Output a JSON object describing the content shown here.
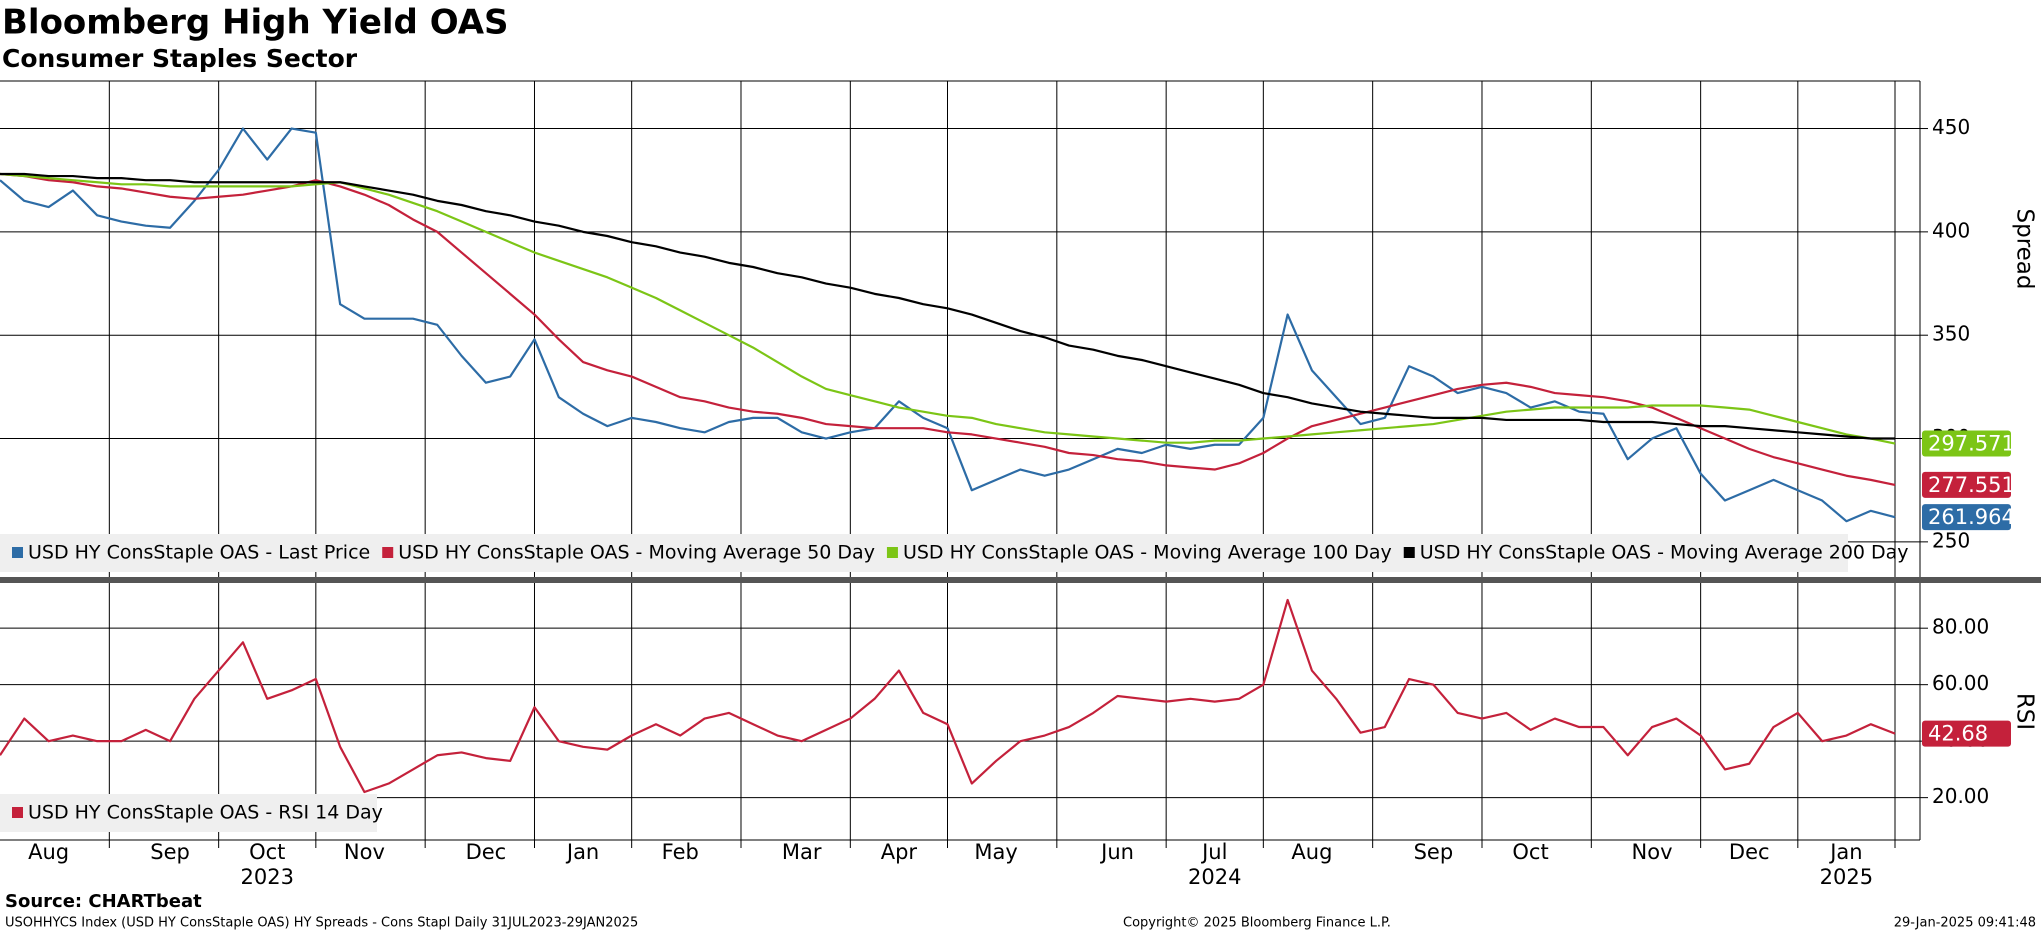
{
  "title": "Bloomberg High Yield OAS",
  "subtitle": "Consumer Staples Sector",
  "x_axis": {
    "categories": [
      null,
      null,
      "Aug",
      null,
      null,
      null,
      null,
      "Sep",
      null,
      null,
      null,
      "Oct",
      null,
      null,
      null,
      "Nov",
      null,
      null,
      null,
      null,
      "Dec",
      null,
      null,
      null,
      "Jan",
      null,
      null,
      null,
      "Feb",
      null,
      null,
      null,
      null,
      "Mar",
      null,
      null,
      null,
      "Apr",
      null,
      null,
      null,
      "May",
      null,
      null,
      null,
      null,
      "Jun",
      null,
      null,
      null,
      "Jul",
      null,
      null,
      null,
      "Aug",
      null,
      null,
      null,
      null,
      "Sep",
      null,
      null,
      null,
      "Oct",
      null,
      null,
      null,
      null,
      "Nov",
      null,
      null,
      null,
      "Dec",
      null,
      null,
      null,
      "Jan",
      null,
      null
    ],
    "years": [
      null,
      null,
      null,
      null,
      null,
      null,
      null,
      null,
      null,
      null,
      null,
      "2023",
      null,
      null,
      null,
      null,
      null,
      null,
      null,
      null,
      null,
      null,
      null,
      null,
      null,
      null,
      null,
      null,
      null,
      null,
      null,
      null,
      null,
      null,
      null,
      null,
      null,
      null,
      null,
      null,
      null,
      null,
      null,
      null,
      null,
      null,
      null,
      null,
      null,
      null,
      "2024",
      null,
      null,
      null,
      null,
      null,
      null,
      null,
      null,
      null,
      null,
      null,
      null,
      null,
      null,
      null,
      null,
      null,
      null,
      null,
      null,
      null,
      null,
      null,
      null,
      null,
      "2025",
      null,
      null
    ]
  },
  "chart_data": [
    {
      "type": "line",
      "y_label": "Spread",
      "ylim": [
        233,
        473
      ],
      "yticks": [
        250,
        300,
        350,
        400,
        450
      ],
      "grid": true,
      "series": [
        {
          "name": "USD HY ConsStaple OAS - Last Price",
          "color": "#2d6ca6",
          "tagged": true,
          "values": [
            425,
            415,
            412,
            420,
            408,
            405,
            403,
            402,
            415,
            430,
            450,
            435,
            450,
            448,
            365,
            358,
            358,
            358,
            355,
            340,
            327,
            330,
            348,
            320,
            312,
            306,
            310,
            308,
            305,
            303,
            308,
            310,
            310,
            303,
            300,
            303,
            305,
            318,
            310,
            305,
            275,
            280,
            285,
            282,
            285,
            290,
            295,
            293,
            297,
            295,
            297,
            297,
            310,
            360,
            333,
            320,
            307,
            310,
            335,
            330,
            322,
            325,
            322,
            315,
            318,
            313,
            312,
            290,
            300,
            305,
            283,
            270,
            275,
            280,
            275,
            270,
            260,
            265,
            261.964
          ]
        },
        {
          "name": "USD HY ConsStaple OAS - Moving Average 50 Day",
          "color": "#c4213b",
          "tagged": true,
          "values": [
            428,
            427,
            425,
            424,
            422,
            421,
            419,
            417,
            416,
            417,
            418,
            420,
            422,
            425,
            422,
            418,
            413,
            406,
            400,
            390,
            380,
            370,
            360,
            348,
            337,
            333,
            330,
            325,
            320,
            318,
            315,
            313,
            312,
            310,
            307,
            306,
            305,
            305,
            305,
            303,
            302,
            300,
            298,
            296,
            293,
            292,
            290,
            289,
            287,
            286,
            285,
            288,
            293,
            300,
            306,
            309,
            312,
            315,
            318,
            321,
            324,
            326,
            327,
            325,
            322,
            321,
            320,
            318,
            315,
            310,
            305,
            300,
            295,
            291,
            288,
            285,
            282,
            280,
            277.551
          ]
        },
        {
          "name": "USD HY ConsStaple OAS - Moving Average 100 Day",
          "color": "#7cc516",
          "tagged": true,
          "values": [
            428,
            427,
            426,
            425,
            424,
            423,
            423,
            422,
            422,
            422,
            422,
            422,
            422,
            423,
            424,
            421,
            418,
            414,
            410,
            405,
            400,
            395,
            390,
            386,
            382,
            378,
            373,
            368,
            362,
            356,
            350,
            344,
            337,
            330,
            324,
            321,
            318,
            315,
            313,
            311,
            310,
            307,
            305,
            303,
            302,
            301,
            300,
            299,
            298,
            298,
            299,
            299,
            300,
            301,
            302,
            303,
            304,
            305,
            306,
            307,
            309,
            311,
            313,
            314,
            315,
            315,
            315,
            315,
            316,
            316,
            316,
            315,
            314,
            311,
            308,
            305,
            302,
            300,
            297.571
          ]
        },
        {
          "name": "USD HY ConsStaple OAS - Moving Average 200 Day",
          "color": "#000000",
          "tagged": false,
          "values": [
            428,
            428,
            427,
            427,
            426,
            426,
            425,
            425,
            424,
            424,
            424,
            424,
            424,
            424,
            424,
            422,
            420,
            418,
            415,
            413,
            410,
            408,
            405,
            403,
            400,
            398,
            395,
            393,
            390,
            388,
            385,
            383,
            380,
            378,
            375,
            373,
            370,
            368,
            365,
            363,
            360,
            356,
            352,
            349,
            345,
            343,
            340,
            338,
            335,
            332,
            329,
            326,
            322,
            320,
            317,
            315,
            313,
            312,
            311,
            310,
            310,
            310,
            309,
            309,
            309,
            309,
            308,
            308,
            308,
            307,
            306,
            306,
            305,
            304,
            303,
            302,
            301,
            300,
            300
          ]
        }
      ]
    },
    {
      "type": "line",
      "y_label": "RSI",
      "ylim": [
        5,
        96
      ],
      "yticks": [
        {
          "value": 20,
          "label": "20.00"
        },
        {
          "value": 40,
          "label": "40.00"
        },
        {
          "value": 60,
          "label": "60.00"
        },
        {
          "value": 80,
          "label": "80.00"
        }
      ],
      "grid": true,
      "series": [
        {
          "name": "USD HY ConsStaple OAS - RSI 14 Day",
          "color": "#c4213b",
          "tagged": true,
          "values": [
            35,
            48,
            40,
            42,
            40,
            40,
            44,
            40,
            55,
            65,
            75,
            55,
            58,
            62,
            38,
            22,
            25,
            30,
            35,
            36,
            34,
            33,
            52,
            40,
            38,
            37,
            42,
            46,
            42,
            48,
            50,
            46,
            42,
            40,
            44,
            48,
            55,
            65,
            50,
            46,
            25,
            33,
            40,
            42,
            45,
            50,
            56,
            55,
            54,
            55,
            54,
            55,
            60,
            90,
            65,
            55,
            43,
            45,
            62,
            60,
            50,
            48,
            50,
            44,
            48,
            45,
            45,
            35,
            45,
            48,
            42,
            30,
            32,
            45,
            50,
            40,
            42,
            46,
            42.68
          ]
        }
      ]
    }
  ],
  "footer": {
    "source": "Source: CHARTbeat",
    "description": "USOHHYCS Index (USD HY ConsStaple OAS) HY Spreads - Cons Stapl  Daily 31JUL2023-29JAN2025",
    "copyright": "Copyright© 2025 Bloomberg Finance L.P.",
    "timestamp": "29-Jan-2025 09:41:48"
  }
}
